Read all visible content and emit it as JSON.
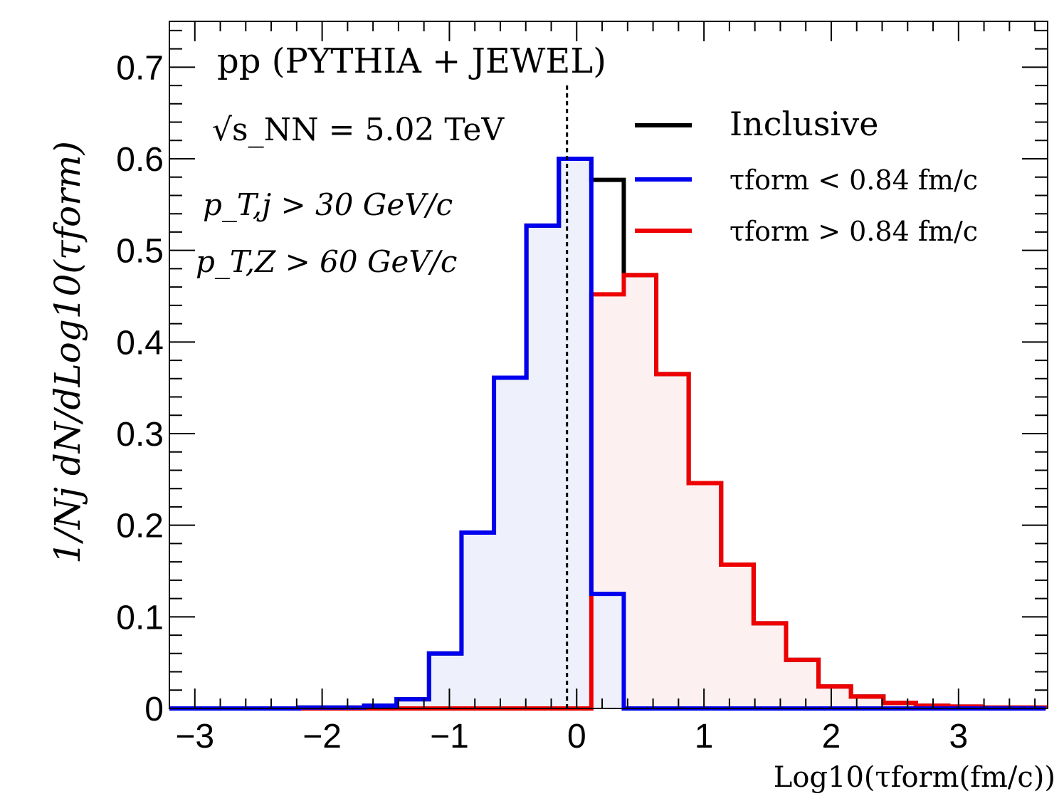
{
  "chart_data": {
    "type": "histogram",
    "title": "pp (PYTHIA + JEWEL)",
    "annotations": {
      "energy": "√s_NN = 5.02 TeV",
      "cut_jet": "p_T,j > 30 GeV/c",
      "cut_z": "p_T,Z > 60 GeV/c"
    },
    "xlabel": "Log10(τform(fm/c))",
    "ylabel": "1/Nj dN/dLog10(τform)",
    "xlim": [
      -3.2,
      3.7
    ],
    "ylim": [
      0,
      0.75
    ],
    "x_ticks": [
      -3,
      -2,
      -1,
      0,
      1,
      2,
      3
    ],
    "x_tick_labels": [
      "−3",
      "−2",
      "−1",
      "0",
      "1",
      "2",
      "3"
    ],
    "y_ticks": [
      0,
      0.1,
      0.2,
      0.3,
      0.4,
      0.5,
      0.6,
      0.7
    ],
    "y_tick_labels": [
      "0",
      "0.1",
      "0.2",
      "0.3",
      "0.4",
      "0.5",
      "0.6",
      "0.7"
    ],
    "cut_line_x": -0.076,
    "bin_edges": [
      -3.2,
      -2.945,
      -2.69,
      -2.435,
      -2.18,
      -1.925,
      -1.67,
      -1.415,
      -1.16,
      -0.905,
      -0.65,
      -0.395,
      -0.14,
      0.115,
      0.37,
      0.625,
      0.88,
      1.135,
      1.39,
      1.645,
      1.9,
      2.155,
      2.41,
      2.665,
      2.92,
      3.175,
      3.43,
      3.685
    ],
    "series": [
      {
        "name": "Inclusive",
        "color": "#000000",
        "fill": false,
        "values": [
          0,
          0,
          0,
          0,
          0.001,
          0.001,
          0.003,
          0.01,
          0.06,
          0.192,
          0.361,
          0.527,
          0.6,
          0.577,
          0.473,
          0.365,
          0.246,
          0.157,
          0.093,
          0.053,
          0.024,
          0.013,
          0.006,
          0.003,
          0.002,
          0.001,
          0.001
        ]
      },
      {
        "name": "τform < 0.84 fm/c",
        "color": "#0000ee",
        "fill": "#eef0fb",
        "values": [
          0,
          0,
          0,
          0,
          0.001,
          0.001,
          0.003,
          0.01,
          0.06,
          0.192,
          0.361,
          0.527,
          0.6,
          0.125,
          0,
          0,
          0,
          0,
          0,
          0,
          0,
          0,
          0,
          0,
          0,
          0,
          0
        ]
      },
      {
        "name": "τform > 0.84 fm/c",
        "color": "#ee0000",
        "fill": "#fdf0f0",
        "values": [
          0,
          0,
          0,
          0,
          0,
          0,
          0,
          0,
          0,
          0,
          0,
          0,
          0,
          0.452,
          0.473,
          0.365,
          0.246,
          0.157,
          0.093,
          0.053,
          0.024,
          0.013,
          0.006,
          0.003,
          0.002,
          0.001,
          0.001
        ]
      }
    ],
    "legend": {
      "position": "top-right",
      "entries": [
        "Inclusive",
        "τform < 0.84 fm/c",
        "τform > 0.84 fm/c"
      ]
    },
    "grid": false
  }
}
